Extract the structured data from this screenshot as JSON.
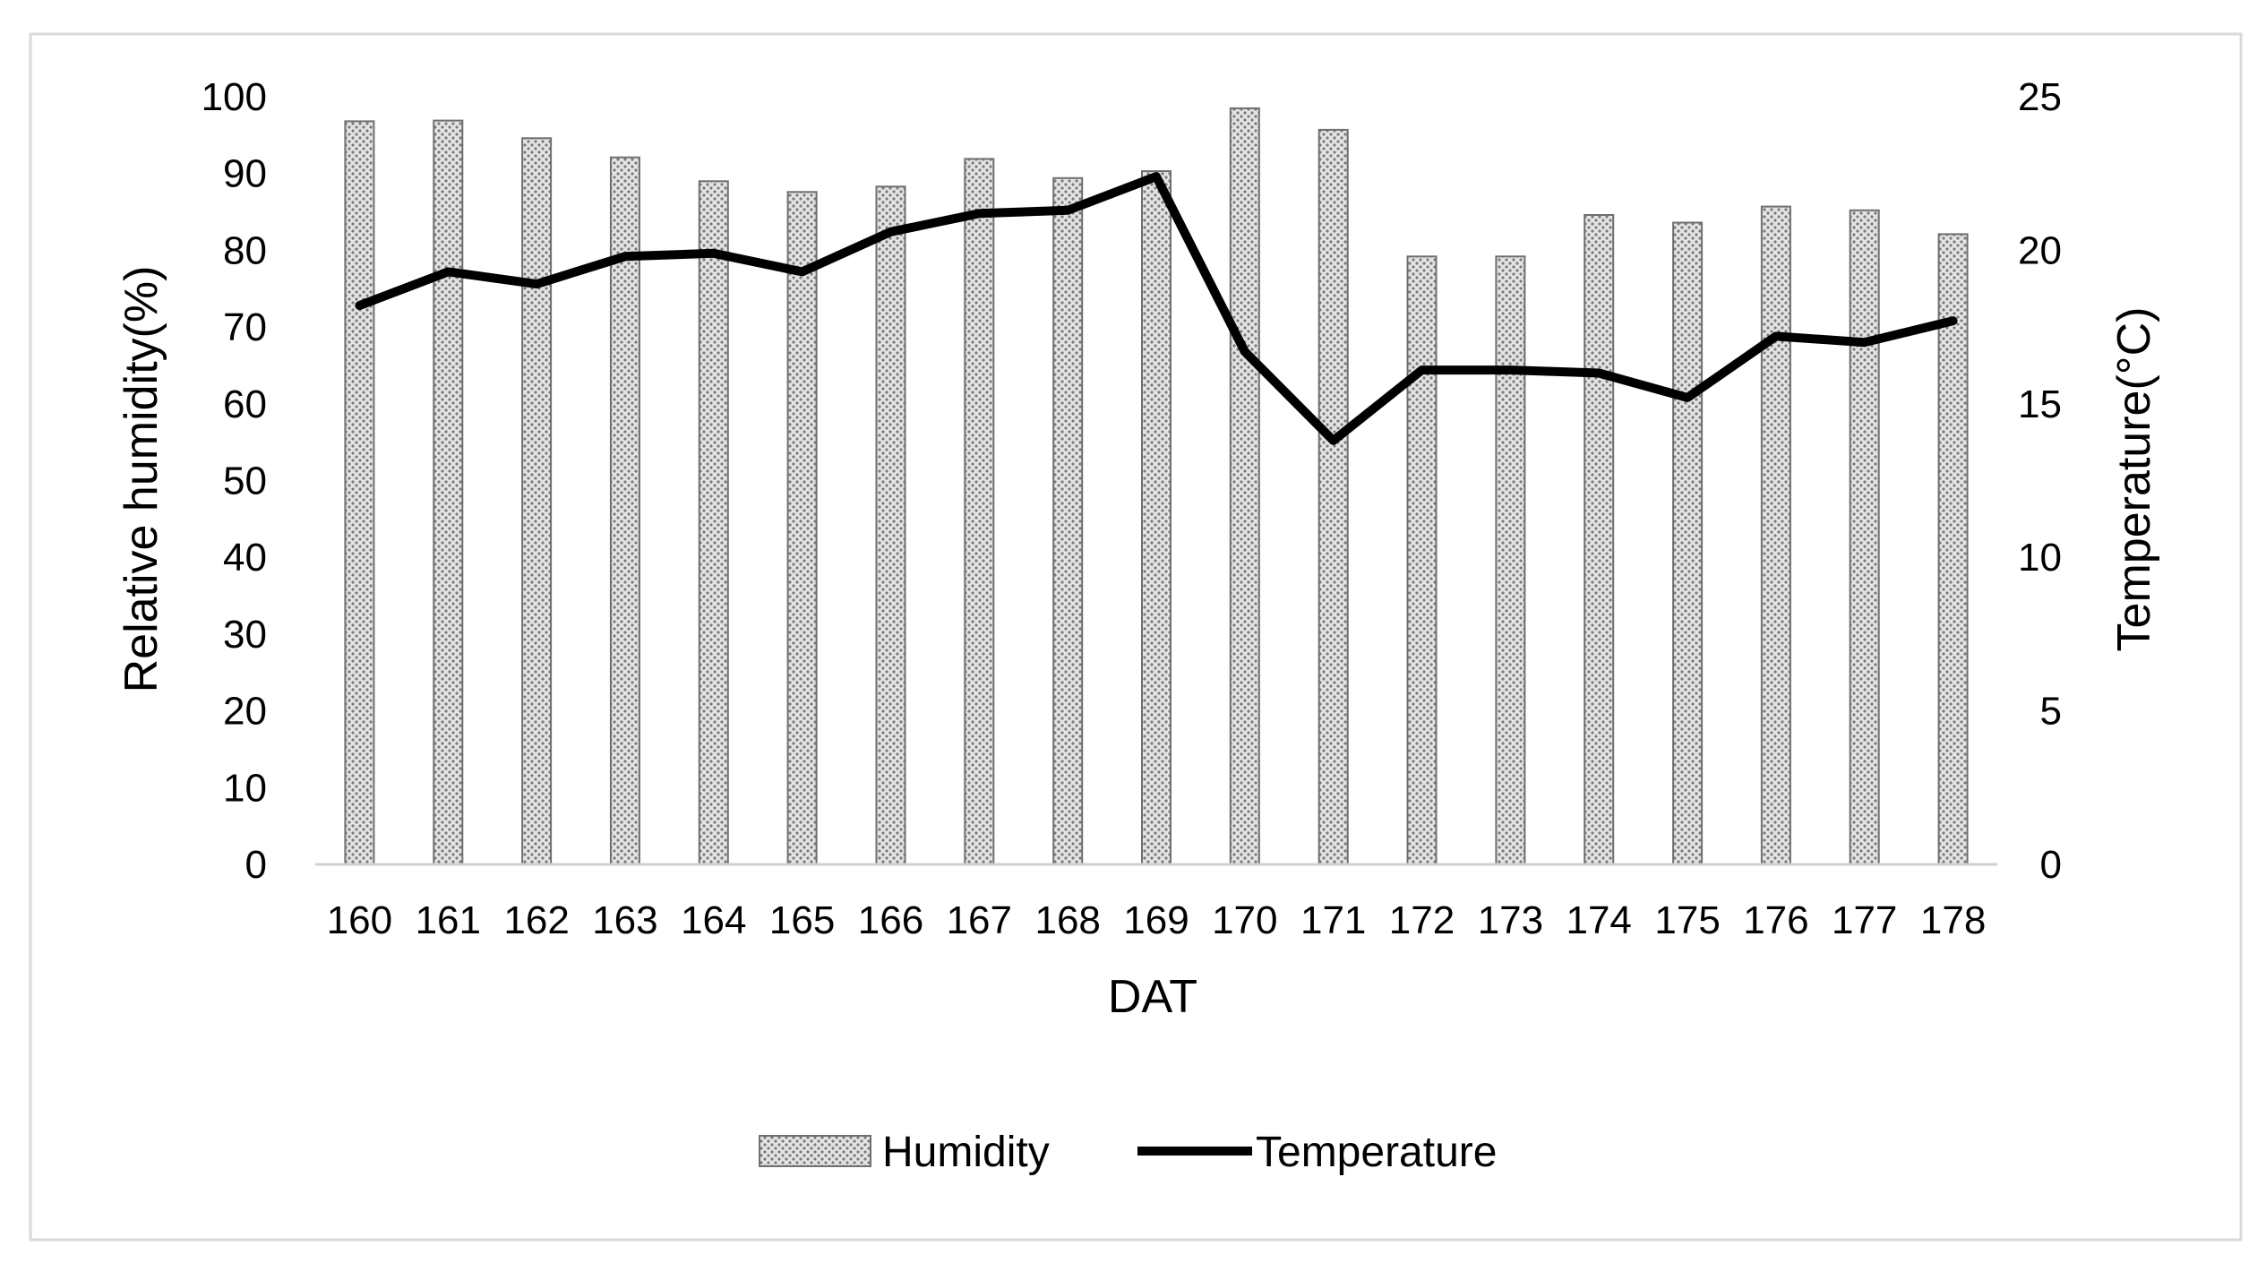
{
  "chart_data": {
    "type": "bar",
    "title": "",
    "xlabel": "DAT",
    "ylabel_left": "Relative humidity(%)",
    "ylabel_right": "Temperature(°C)",
    "categories": [
      "160",
      "161",
      "162",
      "163",
      "164",
      "165",
      "166",
      "167",
      "168",
      "169",
      "170",
      "171",
      "172",
      "173",
      "174",
      "175",
      "176",
      "177",
      "178"
    ],
    "ylim_left": [
      0,
      100
    ],
    "ylim_right": [
      0,
      25
    ],
    "yticks_left": [
      "0",
      "10",
      "20",
      "30",
      "40",
      "50",
      "60",
      "70",
      "80",
      "90",
      "100"
    ],
    "yticks_right": [
      "0",
      "5",
      "10",
      "15",
      "20",
      "25"
    ],
    "grid": false,
    "legend_position": "bottom-center",
    "series": [
      {
        "name": "Humidity",
        "type": "bar",
        "axis": "left",
        "values": [
          96.8,
          96.9,
          94.6,
          92.1,
          89.0,
          87.6,
          88.3,
          91.9,
          89.4,
          90.3,
          98.5,
          95.7,
          79.2,
          79.2,
          84.6,
          83.6,
          85.7,
          85.2,
          82.1
        ]
      },
      {
        "name": "Temperature",
        "type": "line",
        "axis": "right",
        "values": [
          18.2,
          19.3,
          18.9,
          19.8,
          19.9,
          19.3,
          20.6,
          21.2,
          21.3,
          22.4,
          16.7,
          13.8,
          16.1,
          16.1,
          16.0,
          15.2,
          17.2,
          17.0,
          17.7
        ]
      }
    ],
    "colors": {
      "bar_fill": "#a9a9a9",
      "bar_outline": "#6f6f6f",
      "line": "#000000",
      "axis": "#d0d0d0",
      "frame": "#d9d9d9"
    }
  }
}
